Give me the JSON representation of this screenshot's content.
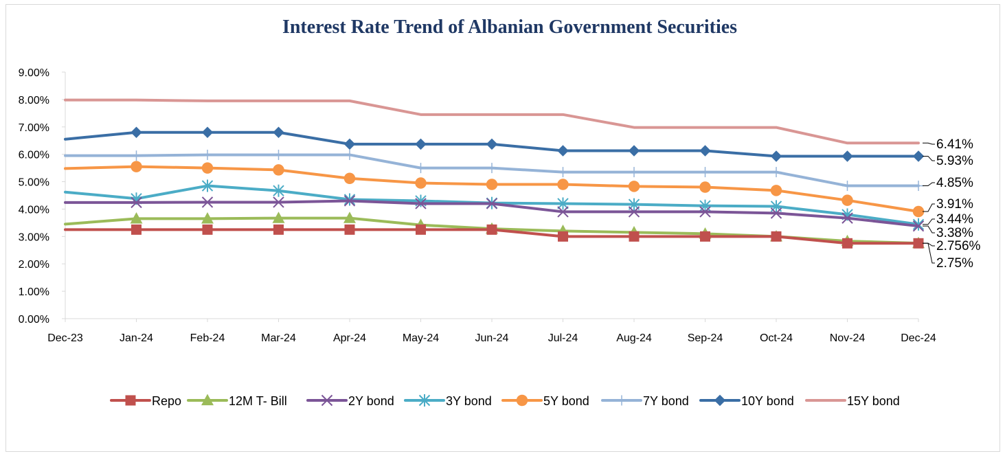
{
  "chart_data": {
    "type": "line",
    "title": "Interest Rate Trend of Albanian Government Securities",
    "categories": [
      "Dec-23",
      "Jan-24",
      "Feb-24",
      "Mar-24",
      "Apr-24",
      "May-24",
      "Jun-24",
      "Jul-24",
      "Aug-24",
      "Sep-24",
      "Oct-24",
      "Nov-24",
      "Dec-24"
    ],
    "y_ticks": [
      "0.00%",
      "1.00%",
      "2.00%",
      "3.00%",
      "4.00%",
      "5.00%",
      "6.00%",
      "7.00%",
      "8.00%",
      "9.00%"
    ],
    "ylim": [
      0,
      9
    ],
    "grid": false,
    "legend_position": "bottom",
    "series": [
      {
        "name": "Repo",
        "color": "#c0504d",
        "marker": "square",
        "values": [
          3.25,
          3.25,
          3.25,
          3.25,
          3.25,
          3.25,
          3.25,
          3.0,
          3.0,
          3.0,
          3.0,
          2.75,
          2.75
        ],
        "end_label": "2.75%"
      },
      {
        "name": "12M T- Bill",
        "color": "#9bbb59",
        "marker": "triangle",
        "values": [
          3.45,
          3.65,
          3.65,
          3.67,
          3.67,
          3.42,
          3.28,
          3.2,
          3.15,
          3.1,
          3.0,
          2.83,
          2.756
        ],
        "end_label": "2.756%"
      },
      {
        "name": "2Y bond",
        "color": "#7b5597",
        "marker": "x",
        "values": [
          4.24,
          4.24,
          4.25,
          4.25,
          4.3,
          4.2,
          4.2,
          3.9,
          3.9,
          3.9,
          3.85,
          3.67,
          3.38
        ],
        "end_label": "3.38%"
      },
      {
        "name": "3Y bond",
        "color": "#4bacc6",
        "marker": "star",
        "values": [
          4.62,
          4.38,
          4.85,
          4.67,
          4.35,
          4.3,
          4.22,
          4.2,
          4.17,
          4.12,
          4.1,
          3.8,
          3.44
        ],
        "end_label": "3.44%"
      },
      {
        "name": "5Y bond",
        "color": "#f79646",
        "marker": "circle",
        "values": [
          5.48,
          5.55,
          5.5,
          5.43,
          5.12,
          4.95,
          4.9,
          4.9,
          4.83,
          4.8,
          4.68,
          4.32,
          3.91
        ],
        "end_label": "3.91%"
      },
      {
        "name": "7Y bond",
        "color": "#95b3d7",
        "marker": "plus",
        "values": [
          5.95,
          5.95,
          5.98,
          5.98,
          5.98,
          5.5,
          5.5,
          5.35,
          5.35,
          5.35,
          5.35,
          4.85,
          4.85
        ],
        "end_label": "4.85%"
      },
      {
        "name": "10Y bond",
        "color": "#3a6ea5",
        "marker": "diamond",
        "values": [
          6.55,
          6.8,
          6.8,
          6.8,
          6.37,
          6.37,
          6.37,
          6.13,
          6.13,
          6.13,
          5.93,
          5.93,
          5.93
        ],
        "end_label": "5.93%"
      },
      {
        "name": "15Y bond",
        "color": "#d99694",
        "marker": "none",
        "values": [
          7.98,
          7.98,
          7.95,
          7.95,
          7.95,
          7.45,
          7.45,
          7.45,
          6.98,
          6.98,
          6.98,
          6.41,
          6.41
        ],
        "end_label": "6.41%"
      }
    ]
  }
}
